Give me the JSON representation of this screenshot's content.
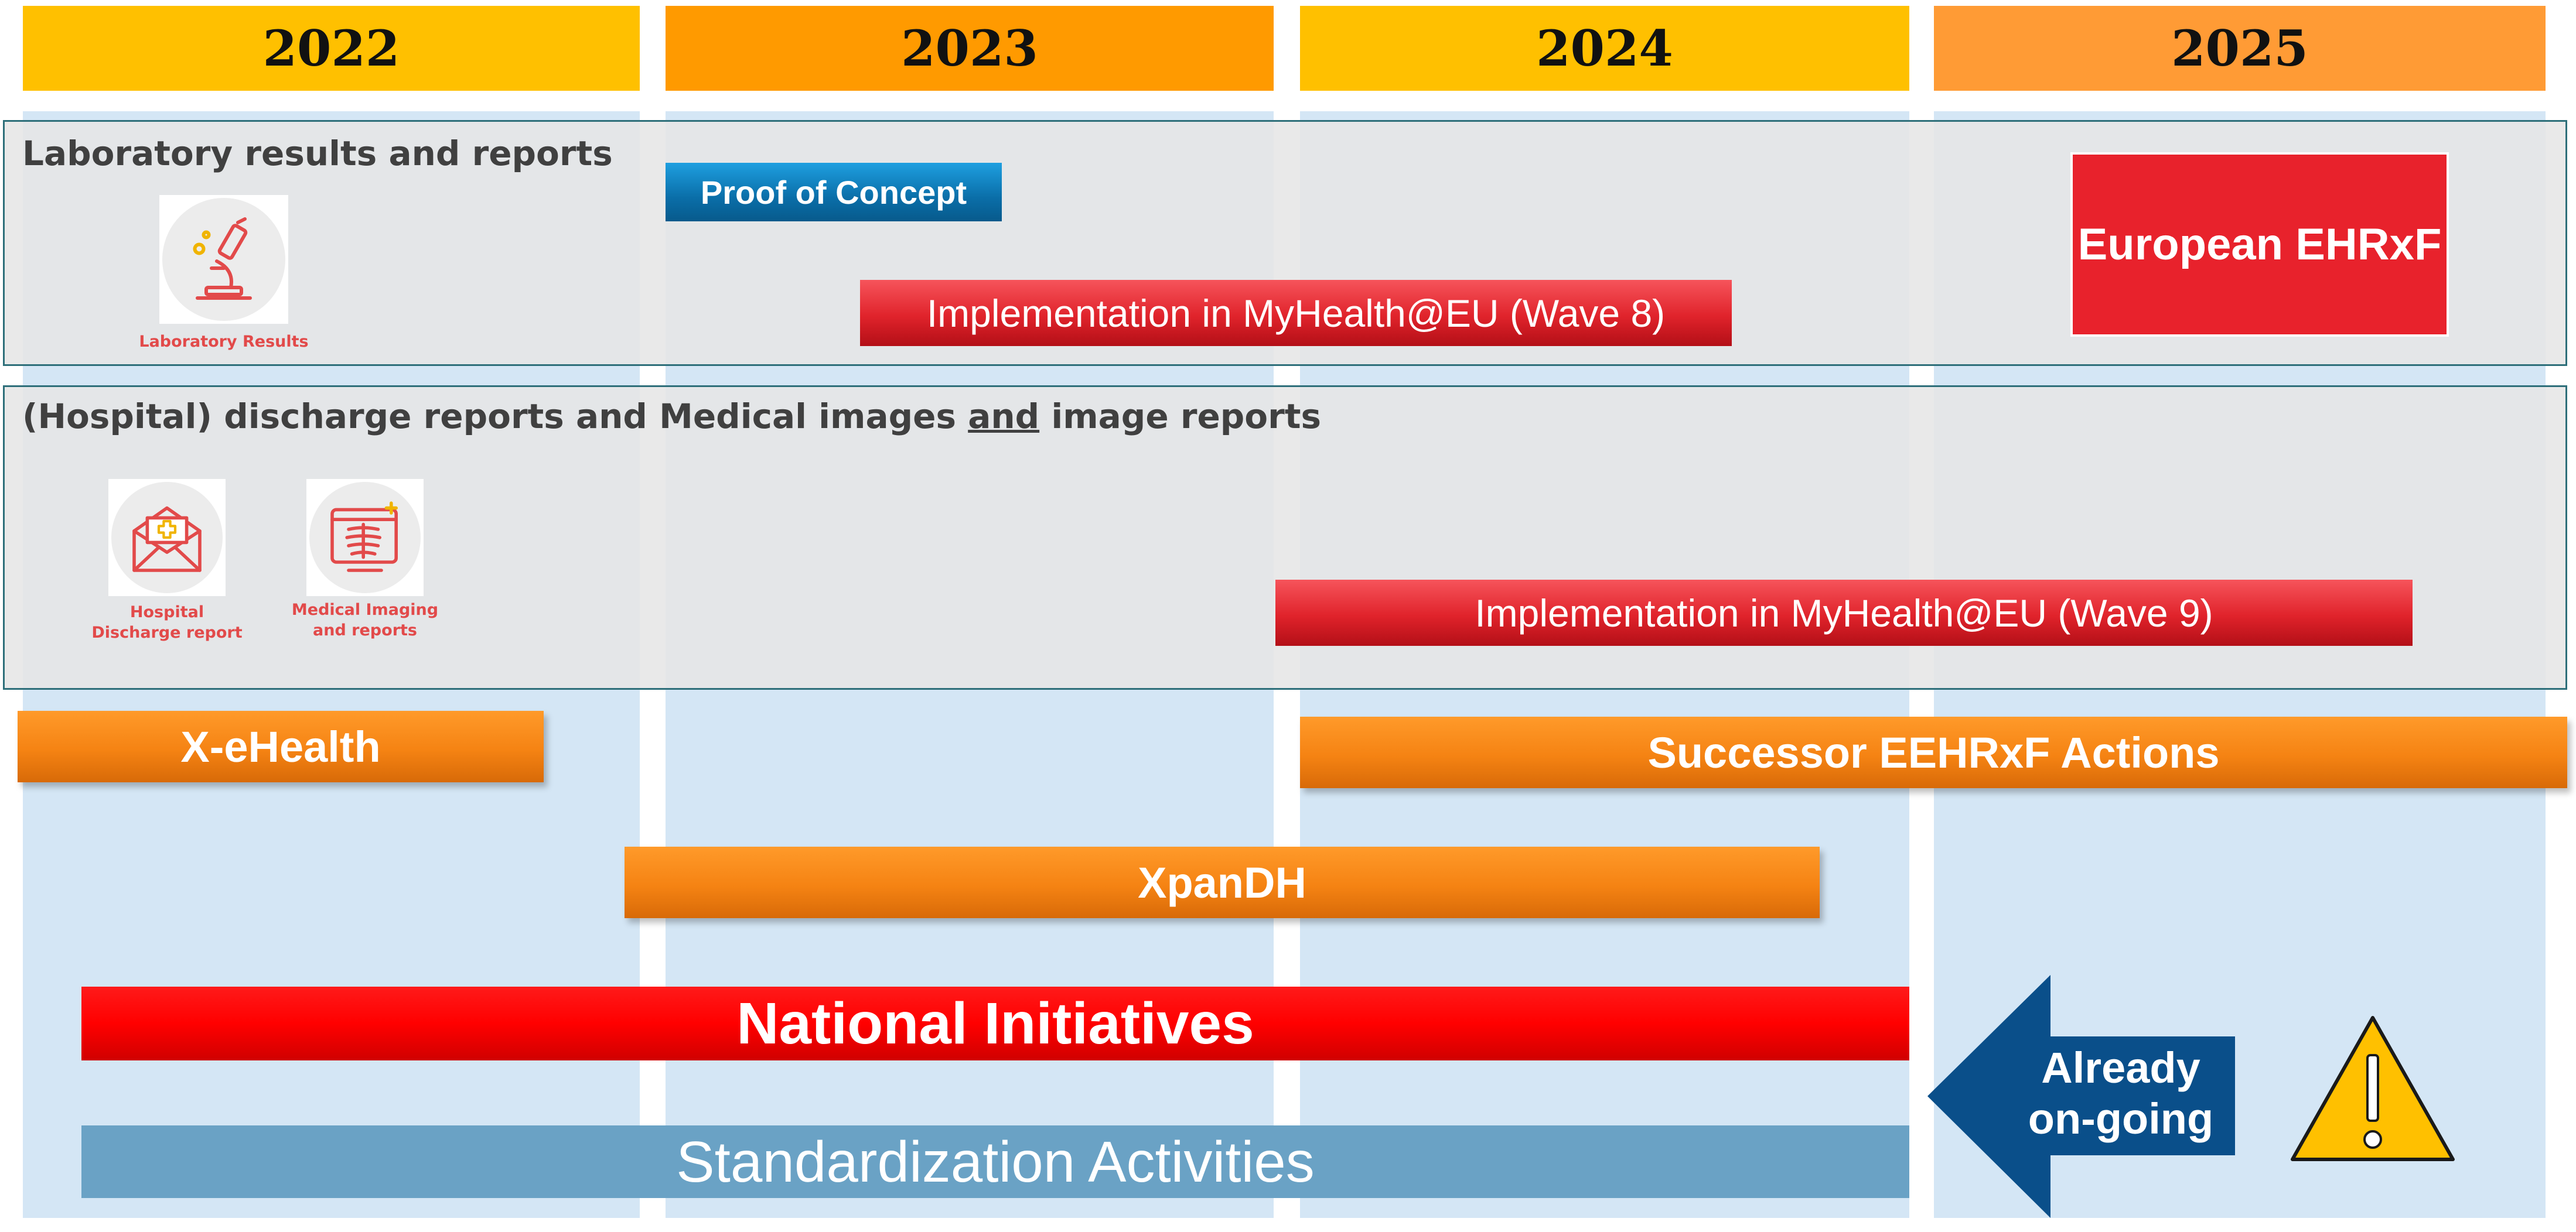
{
  "colors": {
    "year_2022": "#ffc000",
    "year_2023": "#ff9a00",
    "year_2024": "#ffc000",
    "year_2025": "#ff9b35",
    "column_background": "#d4e6f5",
    "orange_bar": "#f58313",
    "red_bar": "#e0232b",
    "national_red": "#ff0000",
    "standardization_blue": "#6aa2c5",
    "arrow_blue": "#0a4f8a",
    "warning_yellow": "#ffc000"
  },
  "years": [
    "2022",
    "2023",
    "2024",
    "2025"
  ],
  "rows": {
    "laboratory": {
      "title": "Laboratory results and reports",
      "icon": "microscope-icon",
      "icon_caption": "Laboratory Results"
    },
    "discharge": {
      "title_part1": "(Hospital) discharge reports and Medical images ",
      "title_underlined": "and",
      "title_part2": " image reports",
      "icons": [
        {
          "icon": "envelope-medical-icon",
          "caption": "Hospital Discharge report"
        },
        {
          "icon": "xray-icon",
          "caption": "Medical Imaging and reports"
        }
      ]
    }
  },
  "bars": {
    "proof_of_concept": "Proof of Concept",
    "wave8": "Implementation in MyHealth@EU (Wave 8)",
    "european_ehrxf": "European EHRxF",
    "wave9": "Implementation in MyHealth@EU (Wave 9)",
    "x_ehealth": "X-eHealth",
    "successor": "Successor EEHRxF Actions",
    "xpandh": "XpanDH",
    "national": "National Initiatives",
    "standardization": "Standardization Activities"
  },
  "callout": {
    "line1": "Already",
    "line2": "on-going",
    "icon": "warning-icon"
  }
}
